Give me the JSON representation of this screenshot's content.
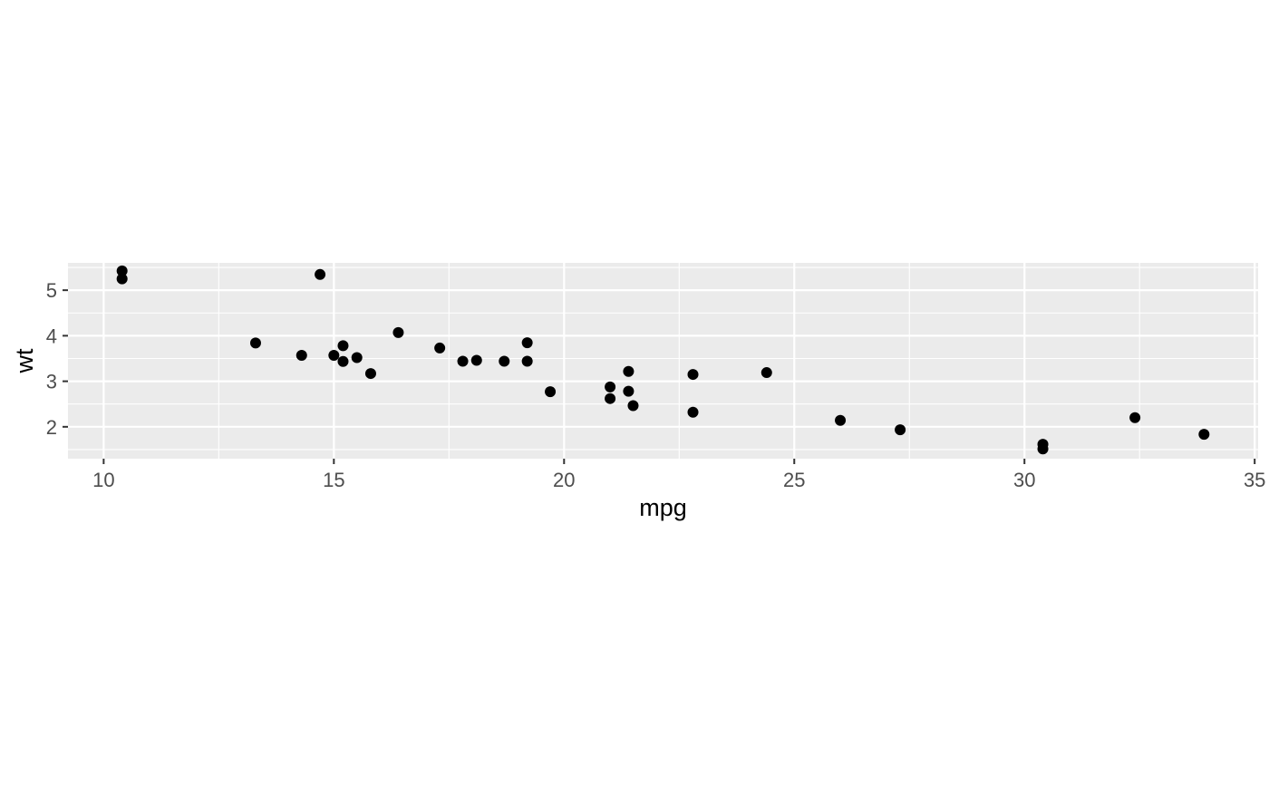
{
  "chart_data": {
    "type": "scatter",
    "title": "",
    "xlabel": "mpg",
    "ylabel": "wt",
    "xlim": [
      9.225,
      35.075
    ],
    "ylim": [
      1.3,
      5.6
    ],
    "x_ticks": [
      10,
      15,
      20,
      25,
      30,
      35
    ],
    "x_tick_labels": [
      "10",
      "15",
      "20",
      "25",
      "30",
      "35"
    ],
    "y_ticks": [
      2,
      3,
      4,
      5
    ],
    "y_tick_labels": [
      "2",
      "3",
      "4",
      "5"
    ],
    "grid": true,
    "legend": "none",
    "colors": {
      "panel": "#ebebeb",
      "grid": "#ffffff",
      "point": "#000000",
      "tick_text": "#4d4d4d"
    },
    "points": [
      {
        "x": 21.0,
        "y": 2.62
      },
      {
        "x": 21.0,
        "y": 2.875
      },
      {
        "x": 22.8,
        "y": 2.32
      },
      {
        "x": 21.4,
        "y": 3.215
      },
      {
        "x": 18.7,
        "y": 3.44
      },
      {
        "x": 18.1,
        "y": 3.46
      },
      {
        "x": 14.3,
        "y": 3.57
      },
      {
        "x": 24.4,
        "y": 3.19
      },
      {
        "x": 22.8,
        "y": 3.15
      },
      {
        "x": 19.2,
        "y": 3.44
      },
      {
        "x": 17.8,
        "y": 3.44
      },
      {
        "x": 16.4,
        "y": 4.07
      },
      {
        "x": 17.3,
        "y": 3.73
      },
      {
        "x": 15.2,
        "y": 3.78
      },
      {
        "x": 10.4,
        "y": 5.25
      },
      {
        "x": 10.4,
        "y": 5.424
      },
      {
        "x": 14.7,
        "y": 5.345
      },
      {
        "x": 32.4,
        "y": 2.2
      },
      {
        "x": 30.4,
        "y": 1.615
      },
      {
        "x": 33.9,
        "y": 1.835
      },
      {
        "x": 21.5,
        "y": 2.465
      },
      {
        "x": 15.5,
        "y": 3.52
      },
      {
        "x": 15.2,
        "y": 3.435
      },
      {
        "x": 13.3,
        "y": 3.84
      },
      {
        "x": 19.2,
        "y": 3.845
      },
      {
        "x": 27.3,
        "y": 1.935
      },
      {
        "x": 26.0,
        "y": 2.14
      },
      {
        "x": 30.4,
        "y": 1.513
      },
      {
        "x": 15.8,
        "y": 3.17
      },
      {
        "x": 19.7,
        "y": 2.77
      },
      {
        "x": 15.0,
        "y": 3.57
      },
      {
        "x": 21.4,
        "y": 2.78
      }
    ]
  }
}
